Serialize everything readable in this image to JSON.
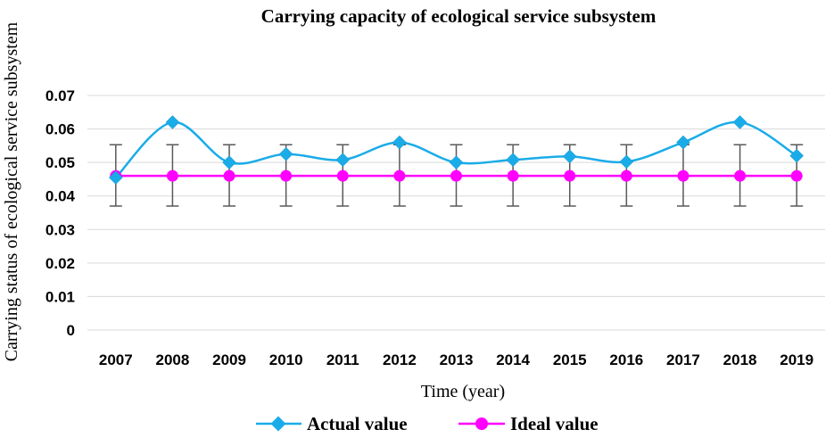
{
  "chart_data": {
    "type": "line",
    "title": "Carrying capacity of ecological service subsystem",
    "xlabel": "Time (year)",
    "ylabel": "Carrying status of ecological service subsystem",
    "categories": [
      "2007",
      "2008",
      "2009",
      "2010",
      "2011",
      "2012",
      "2013",
      "2014",
      "2015",
      "2016",
      "2017",
      "2018",
      "2019"
    ],
    "ylim": [
      0,
      0.07
    ],
    "yticks": [
      "0",
      "0.01",
      "0.02",
      "0.03",
      "0.04",
      "0.05",
      "0.06",
      "0.07"
    ],
    "grid": true,
    "legend_position": "bottom",
    "series": [
      {
        "name": "Actual value",
        "color": "#1AACE8",
        "marker": "diamond",
        "smooth": true,
        "values": [
          0.0455,
          0.062,
          0.05,
          0.0525,
          0.0508,
          0.056,
          0.05,
          0.0508,
          0.0518,
          0.0502,
          0.056,
          0.062,
          0.052
        ]
      },
      {
        "name": "Ideal value",
        "color": "#FF00FF",
        "marker": "circle",
        "smooth": false,
        "values": [
          0.046,
          0.046,
          0.046,
          0.046,
          0.046,
          0.046,
          0.046,
          0.046,
          0.046,
          0.046,
          0.046,
          0.046,
          0.046
        ],
        "error_bars": {
          "lower": 0.037,
          "upper": 0.0553,
          "color": "#595959"
        }
      }
    ]
  }
}
